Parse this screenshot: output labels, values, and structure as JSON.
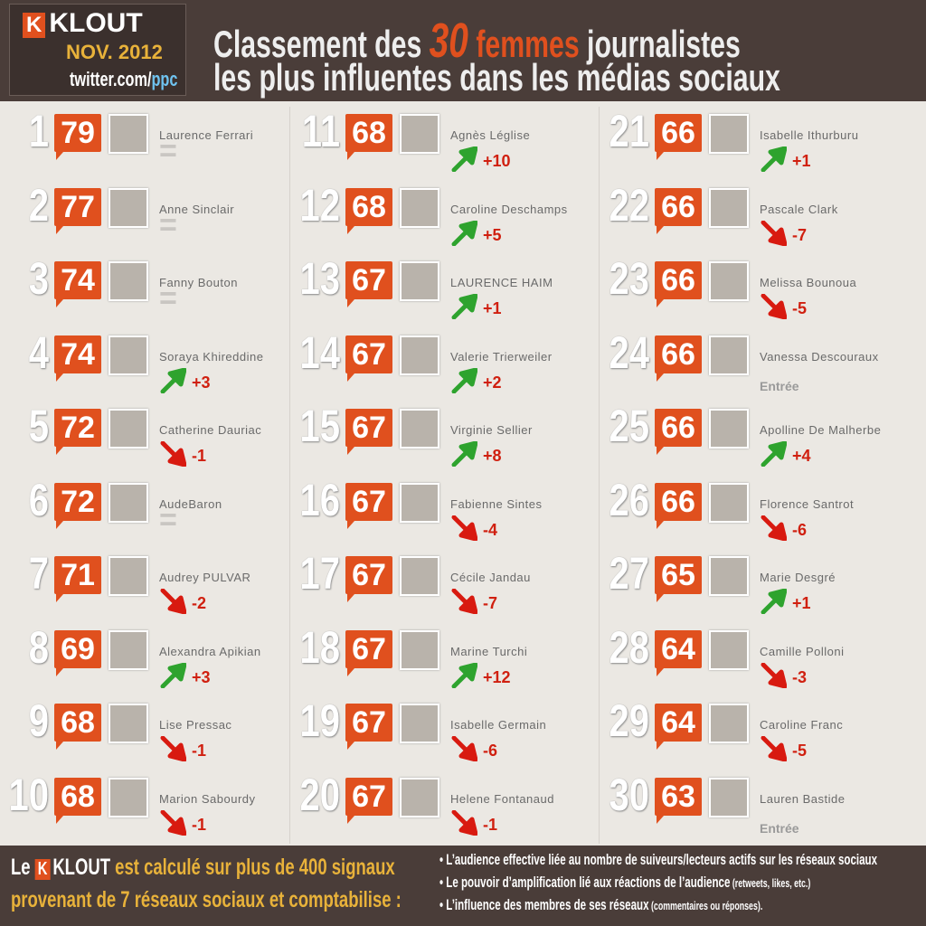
{
  "header": {
    "brand": "KLOUT",
    "date": "NOV. 2012",
    "twitter": [
      "twitter.com/",
      "ppc"
    ],
    "title": {
      "line1": [
        "Classement des",
        "30",
        "femmes",
        "journalistes"
      ],
      "line2": "les plus influentes dans les médias sociaux"
    }
  },
  "entries": [
    {
      "rank": "1",
      "score": "79",
      "name": "Laurence Ferrari",
      "change": "="
    },
    {
      "rank": "2",
      "score": "77",
      "name": "Anne Sinclair",
      "change": "="
    },
    {
      "rank": "3",
      "score": "74",
      "name": "Fanny Bouton",
      "change": "="
    },
    {
      "rank": "4",
      "score": "74",
      "name": "Soraya Khireddine",
      "change": "+3"
    },
    {
      "rank": "5",
      "score": "72",
      "name": "Catherine Dauriac",
      "change": "-1"
    },
    {
      "rank": "6",
      "score": "72",
      "name": "AudeBaron",
      "change": "="
    },
    {
      "rank": "7",
      "score": "71",
      "name": "Audrey PULVAR",
      "change": "-2"
    },
    {
      "rank": "8",
      "score": "69",
      "name": "Alexandra Apikian",
      "change": "+3"
    },
    {
      "rank": "9",
      "score": "68",
      "name": "Lise Pressac",
      "change": "-1"
    },
    {
      "rank": "10",
      "score": "68",
      "name": "Marion Sabourdy",
      "change": "-1"
    },
    {
      "rank": "11",
      "score": "68",
      "name": "Agnès Léglise",
      "change": "+10"
    },
    {
      "rank": "12",
      "score": "68",
      "name": "Caroline Deschamps",
      "change": "+5"
    },
    {
      "rank": "13",
      "score": "67",
      "name": "LAURENCE HAIM",
      "change": "+1"
    },
    {
      "rank": "14",
      "score": "67",
      "name": "Valerie Trierweiler",
      "change": "+2"
    },
    {
      "rank": "15",
      "score": "67",
      "name": "Virginie Sellier",
      "change": "+8"
    },
    {
      "rank": "16",
      "score": "67",
      "name": "Fabienne Sintes",
      "change": "-4"
    },
    {
      "rank": "17",
      "score": "67",
      "name": "Cécile Jandau",
      "change": "-7"
    },
    {
      "rank": "18",
      "score": "67",
      "name": "Marine Turchi",
      "change": "+12"
    },
    {
      "rank": "19",
      "score": "67",
      "name": "Isabelle Germain",
      "change": "-6"
    },
    {
      "rank": "20",
      "score": "67",
      "name": "Helene Fontanaud",
      "change": "-1"
    },
    {
      "rank": "21",
      "score": "66",
      "name": "Isabelle Ithurburu",
      "change": "+1"
    },
    {
      "rank": "22",
      "score": "66",
      "name": "Pascale Clark",
      "change": "-7"
    },
    {
      "rank": "23",
      "score": "66",
      "name": "Melissa Bounoua",
      "change": "-5"
    },
    {
      "rank": "24",
      "score": "66",
      "name": "Vanessa Descouraux",
      "change": "Entrée"
    },
    {
      "rank": "25",
      "score": "66",
      "name": "Apolline De Malherbe",
      "change": "+4"
    },
    {
      "rank": "26",
      "score": "66",
      "name": "Florence Santrot",
      "change": "-6"
    },
    {
      "rank": "27",
      "score": "65",
      "name": "Marie Desgré",
      "change": "+1"
    },
    {
      "rank": "28",
      "score": "64",
      "name": "Camille Polloni",
      "change": "-3"
    },
    {
      "rank": "29",
      "score": "64",
      "name": "Caroline Franc",
      "change": "-5"
    },
    {
      "rank": "30",
      "score": "63",
      "name": "Lauren Bastide",
      "change": "Entrée"
    }
  ],
  "footer": {
    "lead": "Le",
    "brand": "KLOUT",
    "line1": "est calculé sur plus de 400 signaux",
    "line2": "provenant de 7 réseaux sociaux et comptabilise :",
    "bullets": [
      [
        "L’audience effective liée au nombre de suiveurs/lecteurs actifs sur les réseaux sociaux",
        ""
      ],
      [
        "Le pouvoir d’amplification lié aux réactions de l’audience",
        "(retweets, likes, etc.)"
      ],
      [
        "L’influence des membres de ses réseaux",
        "(commentaires ou réponses)."
      ]
    ]
  }
}
